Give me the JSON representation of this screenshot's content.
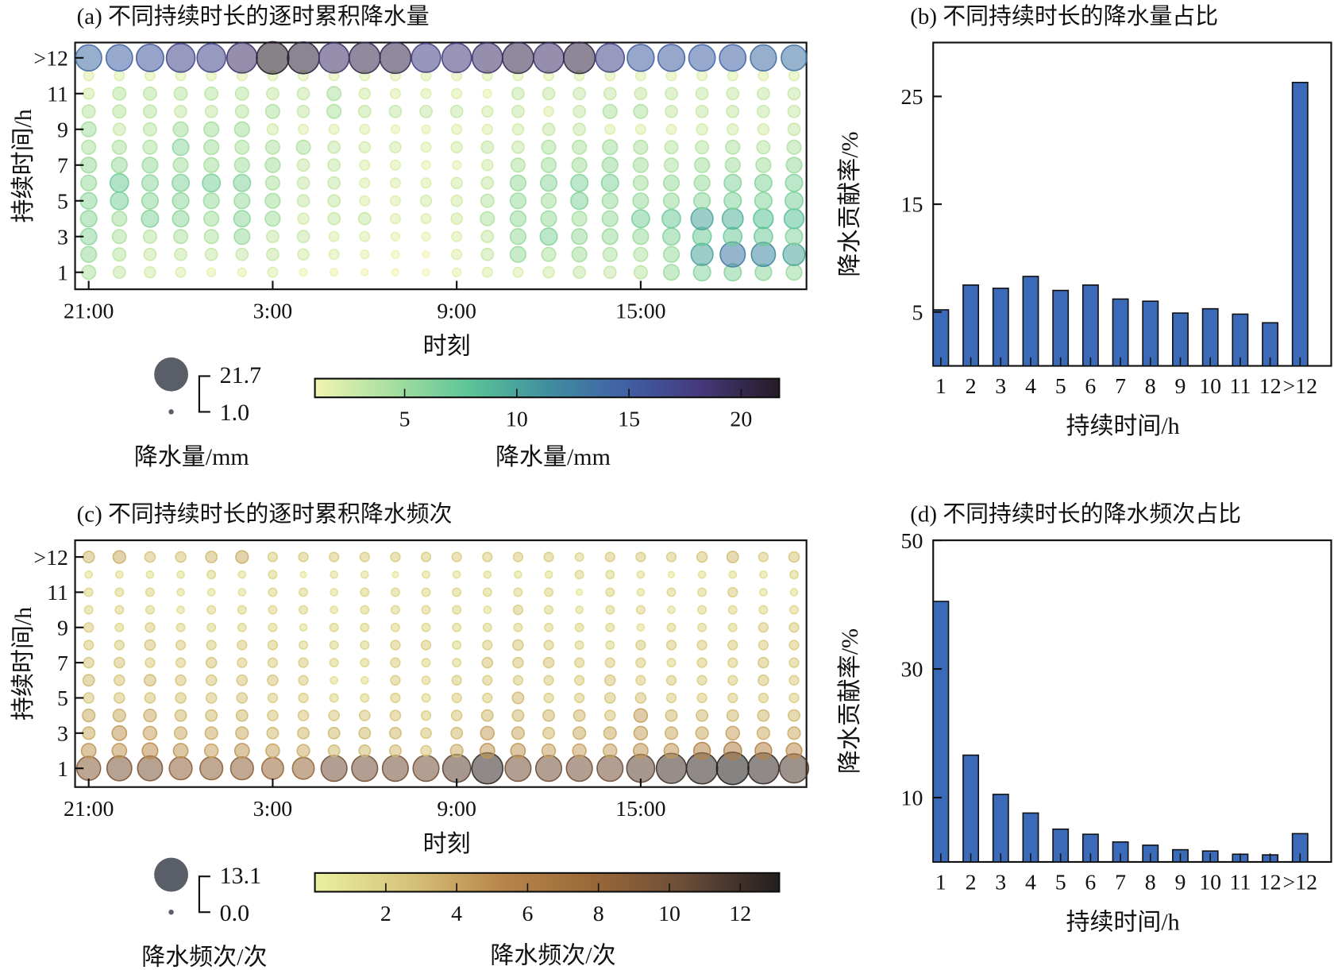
{
  "chart_data": [
    {
      "id": "a",
      "type": "scatter",
      "title": "(a) 不同持续时长的逐时累积降水量",
      "xlabel": "时刻",
      "ylabel": "持续时间/h",
      "x_categories": [
        "21:00",
        "22:00",
        "23:00",
        "0:00",
        "1:00",
        "2:00",
        "3:00",
        "4:00",
        "5:00",
        "6:00",
        "7:00",
        "8:00",
        "9:00",
        "10:00",
        "11:00",
        "12:00",
        "13:00",
        "14:00",
        "15:00",
        "16:00",
        "17:00",
        "18:00",
        "19:00",
        "20:00"
      ],
      "x_tick_labels": [
        "21:00",
        "3:00",
        "9:00",
        "15:00"
      ],
      "y_categories": [
        "1",
        "2",
        "3",
        "4",
        "5",
        "6",
        "7",
        "8",
        "9",
        "10",
        "11",
        "12",
        ">12"
      ],
      "y_tick_labels": [
        "1",
        "3",
        "5",
        "7",
        "9",
        "11",
        ">12"
      ],
      "size_legend": {
        "max": "21.7",
        "min": "1.0",
        "label": "降水量/mm"
      },
      "colorbar": {
        "min": 1.0,
        "max": 21.7,
        "ticks": [
          "5",
          "10",
          "15",
          "20"
        ],
        "label": "降水量/mm"
      },
      "values_by_duration": [
        [
          4,
          3,
          2.5,
          2,
          1.5,
          1.5,
          2,
          1.2,
          1.2,
          1,
          1,
          1,
          1.5,
          2,
          2,
          2.5,
          3,
          3,
          3.5,
          5,
          6,
          6,
          5.5,
          5
        ],
        [
          5,
          3.5,
          3,
          3,
          3,
          3,
          3,
          2.5,
          2,
          1.5,
          1.2,
          1,
          2,
          3,
          5,
          4,
          4.5,
          4,
          4,
          5,
          10,
          13,
          12,
          10
        ],
        [
          5.5,
          4,
          3.5,
          4,
          4,
          5,
          3,
          3,
          2,
          2,
          1.5,
          1.5,
          2,
          3,
          5,
          6,
          5,
          5,
          5,
          6,
          7,
          7,
          7,
          6
        ],
        [
          5.5,
          4.5,
          6,
          5.5,
          4.5,
          5.5,
          4.5,
          2.5,
          3,
          3,
          2,
          2,
          2.5,
          4,
          5,
          5,
          4.5,
          5,
          6.5,
          7,
          10,
          9,
          8,
          8
        ],
        [
          5.5,
          6.5,
          5.5,
          5.5,
          5,
          5,
          4.5,
          3,
          3,
          2,
          2,
          2.5,
          2.5,
          3.5,
          5,
          4.5,
          6,
          5,
          5,
          5,
          5.5,
          6,
          6,
          6.5
        ],
        [
          5,
          7,
          5.5,
          6,
          6.5,
          6,
          4,
          3,
          3,
          2,
          2,
          2,
          2.5,
          3,
          5,
          5.5,
          6,
          6,
          4.5,
          5,
          5,
          6,
          6,
          6
        ],
        [
          5,
          5,
          5,
          4.5,
          4.5,
          4.5,
          4.5,
          3,
          3,
          2,
          2,
          1.5,
          1.5,
          2.5,
          4,
          4.5,
          4.5,
          5,
          4.5,
          4,
          4.5,
          4.5,
          4.5,
          5
        ],
        [
          4,
          4,
          4,
          5.5,
          4.5,
          4,
          4,
          4,
          3,
          2.5,
          2.5,
          2,
          2.5,
          3,
          3,
          4,
          4,
          4.5,
          4,
          3.5,
          3.5,
          4,
          3.5,
          4
        ],
        [
          4.5,
          3,
          3.5,
          4.5,
          4.5,
          4.5,
          2.5,
          2,
          2,
          2,
          1.5,
          1.5,
          2,
          2,
          2.5,
          3,
          3,
          2,
          2,
          2,
          2.5,
          2.5,
          2.5,
          3
        ],
        [
          3.5,
          3.5,
          3.5,
          3,
          3,
          3.5,
          4,
          3,
          4,
          3,
          3,
          3,
          3,
          2.5,
          3,
          2,
          3,
          4,
          4,
          3,
          3,
          3,
          3,
          3
        ],
        [
          2.5,
          3.5,
          3.5,
          3.5,
          3.5,
          3.5,
          3,
          3,
          4,
          2.5,
          2,
          2,
          2,
          1.5,
          3,
          3,
          3,
          3,
          3,
          3,
          3,
          3,
          3,
          3
        ],
        [
          2,
          2,
          2,
          2,
          2,
          2,
          2,
          2,
          2,
          2,
          2,
          2,
          2,
          2,
          2,
          2,
          2,
          2,
          2,
          2,
          2,
          2,
          2,
          2
        ],
        [
          14,
          14.5,
          15.5,
          17,
          17,
          19,
          21.7,
          21,
          19,
          20,
          20,
          17.5,
          18,
          19,
          20,
          19,
          20.5,
          17,
          15,
          15,
          14.5,
          14.5,
          14,
          13.5
        ]
      ]
    },
    {
      "id": "b",
      "type": "bar",
      "title": "(b) 不同持续时长的降水量占比",
      "xlabel": "持续时间/h",
      "ylabel": "降水贡献率/%",
      "categories": [
        "1",
        "2",
        "3",
        "4",
        "5",
        "6",
        "7",
        "8",
        "9",
        "10",
        "11",
        "12",
        ">12"
      ],
      "values": [
        5.2,
        7.5,
        7.2,
        8.3,
        7.0,
        7.5,
        6.2,
        6.0,
        4.9,
        5.3,
        4.8,
        4.0,
        26.3
      ],
      "y_ticks": [
        "5",
        "15",
        "25"
      ],
      "ylim": [
        0,
        30
      ],
      "color": "#3a6ab8"
    },
    {
      "id": "c",
      "type": "scatter",
      "title": "(c) 不同持续时长的逐时累积降水频次",
      "xlabel": "时刻",
      "ylabel": "持续时间/h",
      "x_categories": [
        "21:00",
        "22:00",
        "23:00",
        "0:00",
        "1:00",
        "2:00",
        "3:00",
        "4:00",
        "5:00",
        "6:00",
        "7:00",
        "8:00",
        "9:00",
        "10:00",
        "11:00",
        "12:00",
        "13:00",
        "14:00",
        "15:00",
        "16:00",
        "17:00",
        "18:00",
        "19:00",
        "20:00"
      ],
      "x_tick_labels": [
        "21:00",
        "3:00",
        "9:00",
        "15:00"
      ],
      "y_categories": [
        "1",
        "2",
        "3",
        "4",
        "5",
        "6",
        "7",
        "8",
        "9",
        "10",
        "11",
        "12",
        ">12"
      ],
      "y_tick_labels": [
        "1",
        "3",
        "5",
        "7",
        "9",
        "11",
        ">12"
      ],
      "size_legend": {
        "max": "13.1",
        "min": "0.0",
        "label": "降水频次/次"
      },
      "colorbar": {
        "min": 0.0,
        "max": 13.1,
        "ticks": [
          "2",
          "4",
          "6",
          "8",
          "10",
          "12"
        ],
        "label": "降水频次/次"
      },
      "values_by_duration": [
        [
          9,
          9.5,
          9.5,
          8.5,
          8.5,
          8.5,
          8,
          8,
          10,
          10,
          10,
          10,
          11,
          12.5,
          10,
          10,
          10,
          10,
          11,
          12,
          12.5,
          13.1,
          12.5,
          11.5
        ],
        [
          4.5,
          4.5,
          5,
          4.5,
          4,
          4.5,
          4,
          3.5,
          3,
          3,
          3,
          2.5,
          3.5,
          4.5,
          4.5,
          4,
          4,
          4,
          4.5,
          4.5,
          5.5,
          6,
          5.5,
          5
        ],
        [
          3.5,
          4.5,
          4,
          3.5,
          3.5,
          3.5,
          3,
          3,
          3,
          3,
          3,
          2.5,
          3,
          4,
          3.5,
          3,
          3.5,
          3.5,
          4,
          3.5,
          3.5,
          4,
          3.5,
          3.5
        ],
        [
          3.5,
          3.5,
          3.5,
          3,
          3,
          3,
          2.5,
          2.5,
          2.5,
          2.5,
          2.5,
          2,
          2.5,
          3,
          3,
          3,
          3,
          2.5,
          4,
          3,
          3,
          3,
          3,
          3
        ],
        [
          2.5,
          2.5,
          2.5,
          2.5,
          2.5,
          2.5,
          2,
          2,
          1.5,
          1.5,
          2,
          1.5,
          2,
          2,
          3,
          2,
          2,
          2.5,
          2.5,
          2,
          2,
          2,
          2,
          2
        ],
        [
          3,
          2.5,
          3,
          2.5,
          2.5,
          2.5,
          2.5,
          2,
          1,
          1,
          2,
          1.5,
          2,
          2,
          2,
          2,
          2,
          2.5,
          2,
          2,
          2,
          2,
          2.5,
          2
        ],
        [
          2.5,
          2.5,
          2,
          2,
          2.5,
          2,
          2,
          2,
          1.5,
          1.5,
          2,
          1.5,
          1.5,
          2.5,
          2.5,
          2.5,
          2,
          2,
          2,
          1.5,
          2,
          2,
          2.5,
          2
        ],
        [
          2,
          2,
          2.5,
          2,
          2,
          2,
          2,
          1.5,
          1.5,
          1.5,
          2,
          2,
          1.5,
          2,
          2.5,
          2,
          1.5,
          1.5,
          2,
          2,
          2,
          2,
          2,
          2
        ],
        [
          2,
          1.5,
          2,
          1.5,
          1.5,
          1.5,
          1.5,
          1,
          1.5,
          1.5,
          1.5,
          1.5,
          1.5,
          1.5,
          1.5,
          1.5,
          1.5,
          1.5,
          1,
          1.5,
          1.5,
          1.5,
          2,
          2
        ],
        [
          1.5,
          1.5,
          1.5,
          1,
          1.5,
          1.5,
          1.5,
          1.5,
          1,
          1.5,
          1.5,
          1.5,
          1.5,
          1,
          2,
          1.5,
          1,
          1.5,
          1.5,
          1,
          1.5,
          1.5,
          1.5,
          1.5
        ],
        [
          1.5,
          1.5,
          1.5,
          1,
          1,
          1,
          1.5,
          1.5,
          1,
          1.5,
          1.5,
          1.5,
          1.5,
          1.5,
          1.5,
          1.5,
          0.5,
          1.5,
          1,
          1.5,
          1.5,
          2,
          1,
          1
        ],
        [
          1,
          1,
          1,
          1,
          1.5,
          1,
          1.5,
          0.5,
          1,
          1,
          0.5,
          1,
          1,
          1,
          1,
          1,
          1.5,
          1.5,
          1,
          0.5,
          1,
          1,
          1,
          1.5
        ],
        [
          3,
          3.5,
          2.5,
          2.5,
          3,
          3.5,
          2,
          2,
          2,
          2,
          2,
          2,
          2,
          2,
          2,
          2,
          1.5,
          2,
          2,
          2,
          2.5,
          3,
          2,
          2.5
        ]
      ]
    },
    {
      "id": "d",
      "type": "bar",
      "title": "(d) 不同持续时长的降水频次占比",
      "xlabel": "持续时间/h",
      "ylabel": "降水贡献率/%",
      "categories": [
        "1",
        "2",
        "3",
        "4",
        "5",
        "6",
        "7",
        "8",
        "9",
        "10",
        "11",
        "12",
        ">12"
      ],
      "values": [
        40.5,
        16.6,
        10.5,
        7.6,
        5.1,
        4.3,
        3.1,
        2.6,
        1.9,
        1.7,
        1.2,
        1.1,
        4.4
      ],
      "y_ticks": [
        "10",
        "30",
        "50"
      ],
      "ylim": [
        0,
        50
      ],
      "color": "#3a6ab8"
    }
  ],
  "colors": {
    "cmap_a": [
      "#f2f4b0",
      "#a6dfa0",
      "#5cc497",
      "#3f8f9f",
      "#4160a6",
      "#45387a",
      "#251b26"
    ],
    "cmap_c": [
      "#eaf0a0",
      "#d6c47a",
      "#b8864a",
      "#9a6838",
      "#6a4c38",
      "#231e1e"
    ],
    "legend_circle": "#5a5e68",
    "bar": "#3a6ab8"
  }
}
